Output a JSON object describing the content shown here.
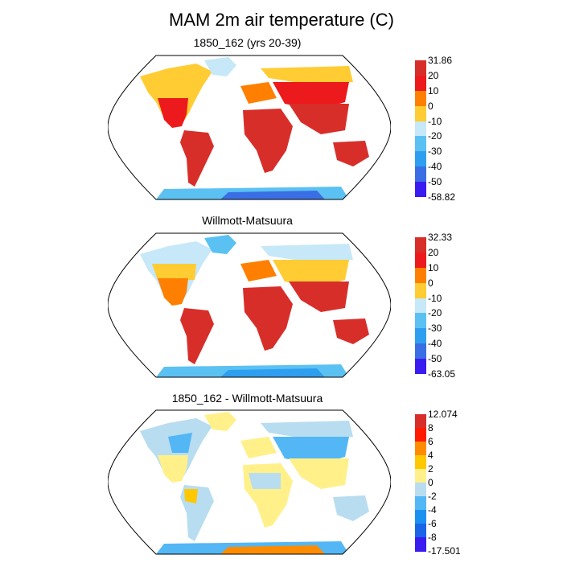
{
  "title": "MAM 2m air temperature (C)",
  "panels": [
    {
      "id": "model",
      "title": "1850_162 (yrs 20-39)",
      "colorbar": {
        "labels": [
          "31.86",
          "20",
          "10",
          "0",
          "-10",
          "-20",
          "-30",
          "-40",
          "-50",
          "-58.82"
        ],
        "colors": [
          "#d82e2a",
          "#ec1a1c",
          "#ff7f00",
          "#ffcc33",
          "#c6e8f8",
          "#5bc1f3",
          "#2e9ff0",
          "#3a6ee4",
          "#3a1cf0"
        ]
      }
    },
    {
      "id": "obs",
      "title": "Willmott-Matsuura",
      "colorbar": {
        "labels": [
          "32.33",
          "20",
          "10",
          "0",
          "-10",
          "-20",
          "-30",
          "-40",
          "-50",
          "-63.05"
        ],
        "colors": [
          "#d82e2a",
          "#ec1a1c",
          "#ff7f00",
          "#ffcc33",
          "#c6e8f8",
          "#5bc1f3",
          "#2e9ff0",
          "#3a6ee4",
          "#3a1cf0"
        ]
      }
    },
    {
      "id": "diff",
      "title": "1850_162 - Willmott-Matsuura",
      "colorbar": {
        "labels": [
          "12.074",
          "8",
          "6",
          "4",
          "2",
          "0",
          "-2",
          "-4",
          "-6",
          "-8",
          "-17.501"
        ],
        "colors": [
          "#d82e2a",
          "#ff1a00",
          "#ff8c00",
          "#ffc800",
          "#fff08a",
          "#b8ddf0",
          "#53b6f5",
          "#1a90f0",
          "#1a64e8",
          "#3a1cf0"
        ]
      }
    }
  ]
}
